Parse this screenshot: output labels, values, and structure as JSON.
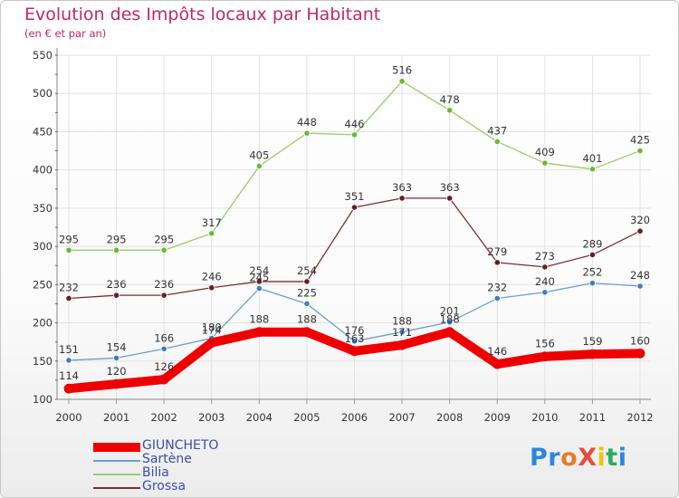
{
  "header": {
    "title": "Evolution des Impôts locaux par Habitant",
    "subtitle": "(en € et par an)"
  },
  "logo": {
    "text": "ProXiti",
    "letters": [
      "P",
      "r",
      "o",
      "X",
      "i",
      "t",
      "i"
    ],
    "colors": [
      "#2e86de",
      "#2e86de",
      "#e67e22",
      "#e74c3c",
      "#f1c40f",
      "#27ae60",
      "#2e86de"
    ]
  },
  "chart_data": {
    "type": "line",
    "x": [
      "2000",
      "2001",
      "2002",
      "2003",
      "2004",
      "2005",
      "2006",
      "2007",
      "2008",
      "2009",
      "2010",
      "2011",
      "2012"
    ],
    "ylim": [
      100,
      550
    ],
    "yticks": [
      100,
      150,
      200,
      250,
      300,
      350,
      400,
      450,
      500,
      550
    ],
    "grid": true,
    "legend_position": "bottom-left",
    "series": [
      {
        "name": "Bilia",
        "color": "#99cc66",
        "marker": "#66bb33",
        "values": [
          295,
          295,
          295,
          317,
          405,
          448,
          446,
          516,
          478,
          437,
          409,
          401,
          425
        ]
      },
      {
        "name": "Grossa",
        "color": "#7a2e2e",
        "marker": "#661f1f",
        "values": [
          232,
          236,
          236,
          246,
          254,
          254,
          351,
          363,
          363,
          279,
          273,
          289,
          320
        ]
      },
      {
        "name": "Sartène",
        "color": "#6a9fcf",
        "marker": "#3a7fc0",
        "values": [
          151,
          154,
          166,
          180,
          245,
          225,
          176,
          188,
          201,
          232,
          240,
          252,
          248
        ]
      },
      {
        "name": "GIUNCHETO",
        "color": "#ee0000",
        "marker": "#ee0000",
        "values": [
          114,
          120,
          126,
          174,
          188,
          188,
          163,
          171,
          188,
          146,
          156,
          159,
          160
        ],
        "thick": true
      }
    ],
    "legend_order": [
      "GIUNCHETO",
      "Sartène",
      "Bilia",
      "Grossa"
    ]
  }
}
